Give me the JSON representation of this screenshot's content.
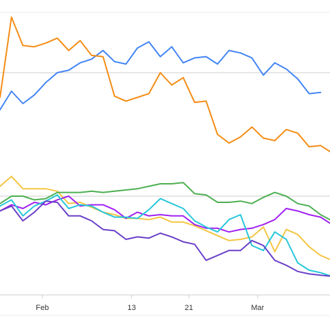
{
  "chart_data": {
    "type": "line",
    "x": [
      0,
      1,
      2,
      3,
      4,
      5,
      6,
      7,
      8,
      9,
      10,
      11,
      12,
      13,
      14,
      15,
      16,
      17,
      18,
      19,
      20,
      21,
      22,
      23,
      24,
      25,
      26,
      27,
      28,
      29
    ],
    "x_tick_labels": [
      {
        "x": 3.7,
        "label": "Feb"
      },
      {
        "x": 11.5,
        "label": "13"
      },
      {
        "x": 16.5,
        "label": "21"
      },
      {
        "x": 22.5,
        "label": "Mar"
      }
    ],
    "xlim": [
      0,
      29
    ],
    "ylim": [
      -30,
      200
    ],
    "gridlines_y": [
      50,
      150
    ],
    "grid": true,
    "legend": "none",
    "series": [
      {
        "color": "#4285f4",
        "values": [
          120,
          135,
          125,
          132,
          142,
          150,
          152,
          158,
          161,
          168,
          159,
          157,
          170,
          175,
          163,
          171,
          158,
          162,
          163,
          157,
          168,
          166,
          162,
          148,
          158,
          153,
          145,
          133,
          134,
          null
        ]
      },
      {
        "color": "#f48c14",
        "values": [
          130,
          195,
          172,
          171,
          174,
          178,
          168,
          176,
          164,
          163,
          131,
          127,
          130,
          133,
          150,
          140,
          146,
          126,
          127,
          100,
          93,
          98,
          106,
          97,
          95,
          104,
          101,
          90,
          91,
          85
        ]
      },
      {
        "color": "#f4c542",
        "values": [
          58,
          66,
          56,
          56,
          56,
          54,
          44,
          45,
          41,
          37,
          35,
          32,
          32,
          31,
          33,
          29,
          29,
          26,
          22,
          18,
          14,
          15,
          17,
          25,
          5,
          23,
          19,
          9,
          2,
          -2
        ]
      },
      {
        "color": "#4caf50",
        "values": [
          44,
          50,
          50,
          47,
          48,
          53,
          53,
          53,
          54,
          53,
          54,
          55,
          56,
          58,
          60,
          60,
          61,
          52,
          51,
          45,
          45,
          46,
          44,
          49,
          53,
          50,
          44,
          42,
          35,
          30
        ]
      },
      {
        "color": "#a020f0",
        "values": [
          38,
          43,
          40,
          45,
          43,
          47,
          50,
          42,
          43,
          43,
          39,
          32,
          37,
          34,
          35,
          34,
          34,
          27,
          24,
          24,
          21,
          23,
          24,
          27,
          31,
          40,
          38,
          35,
          33,
          27
        ]
      },
      {
        "color": "#26c6da",
        "values": [
          42,
          47,
          34,
          42,
          46,
          51,
          40,
          43,
          42,
          37,
          33,
          33,
          32,
          39,
          48,
          44,
          40,
          30,
          25,
          21,
          31,
          35,
          10,
          6,
          21,
          15,
          -4,
          -10,
          -12,
          -15
        ]
      },
      {
        "color": "#6a3fc8",
        "values": [
          38,
          42,
          30,
          37,
          46,
          45,
          34,
          34,
          30,
          23,
          22,
          15,
          17,
          16,
          20,
          17,
          13,
          11,
          -2,
          2,
          6,
          6,
          14,
          10,
          -2,
          -6,
          -11,
          -13,
          -14,
          -15
        ]
      }
    ]
  }
}
